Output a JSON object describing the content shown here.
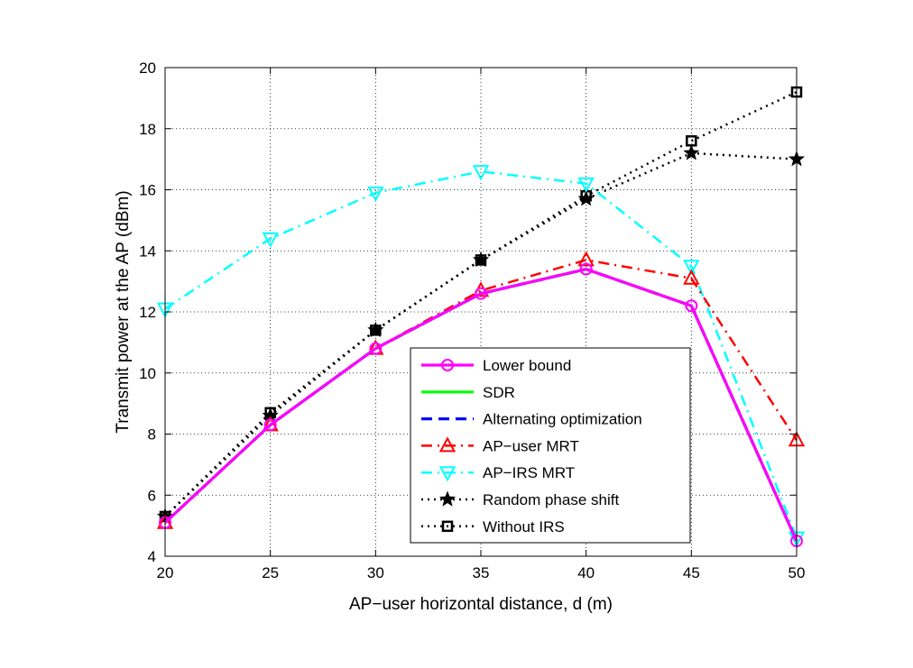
{
  "chart_data": {
    "type": "line",
    "title": "",
    "xlabel": "AP−user horizontal distance, d (m)",
    "ylabel": "Transmit power at the AP (dBm)",
    "xlim": [
      20,
      50
    ],
    "ylim": [
      4,
      20
    ],
    "x_ticks": [
      "20",
      "25",
      "30",
      "35",
      "40",
      "45",
      "50"
    ],
    "y_ticks": [
      "4",
      "6",
      "8",
      "10",
      "12",
      "14",
      "16",
      "18",
      "20"
    ],
    "x": [
      20,
      25,
      30,
      35,
      40,
      45,
      50
    ],
    "grid": true,
    "legend_position": "center-bottom",
    "series": [
      {
        "name": "Lower bound",
        "values": [
          5.1,
          8.3,
          10.8,
          12.6,
          13.4,
          12.2,
          4.5
        ],
        "color": "#ff00ff",
        "dash": "solid",
        "marker": "circle"
      },
      {
        "name": "SDR",
        "values": [
          5.1,
          8.3,
          10.8,
          12.6,
          13.4,
          12.2,
          4.5
        ],
        "color": "#00ff00",
        "dash": "solid",
        "marker": "none"
      },
      {
        "name": "Alternating optimization",
        "values": [
          5.1,
          8.3,
          10.8,
          12.6,
          13.4,
          12.2,
          4.5
        ],
        "color": "#0000ff",
        "dash": "dashed",
        "marker": "none"
      },
      {
        "name": "AP−user MRT",
        "values": [
          5.1,
          8.3,
          10.8,
          12.7,
          13.7,
          13.1,
          7.8
        ],
        "color": "#ff0000",
        "dash": "dashdot",
        "marker": "triangle-up"
      },
      {
        "name": "AP−IRS MRT",
        "values": [
          12.1,
          14.4,
          15.9,
          16.6,
          16.2,
          13.5,
          4.6
        ],
        "color": "#00ffff",
        "dash": "dashdot",
        "marker": "triangle-down"
      },
      {
        "name": "Random phase shift",
        "values": [
          5.3,
          8.6,
          11.4,
          13.7,
          15.7,
          17.2,
          17.0
        ],
        "color": "#000000",
        "dash": "dotted",
        "marker": "star"
      },
      {
        "name": "Without IRS",
        "values": [
          5.3,
          8.7,
          11.4,
          13.7,
          15.8,
          17.6,
          19.2
        ],
        "color": "#000000",
        "dash": "dotted",
        "marker": "square"
      }
    ]
  }
}
